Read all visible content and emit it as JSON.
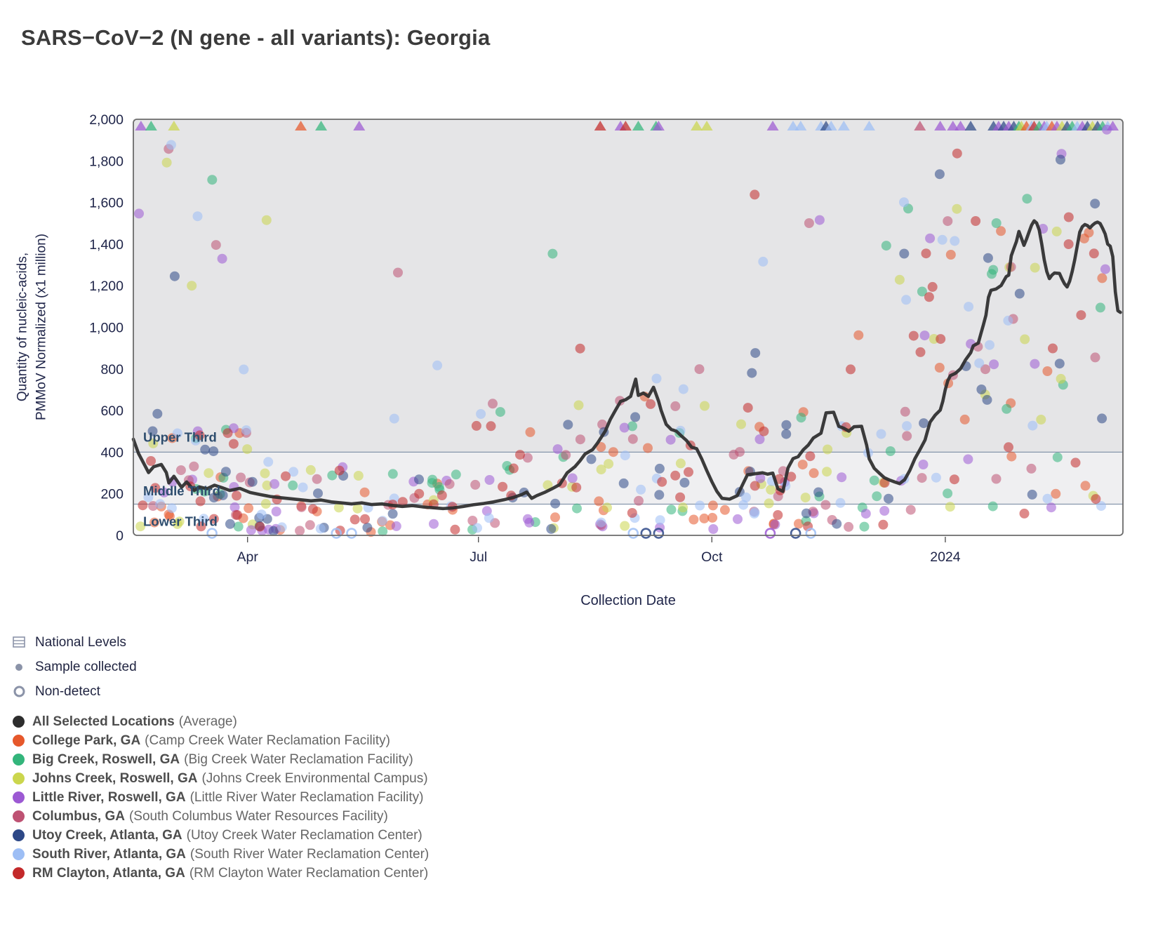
{
  "title": "SARS−CoV−2 (N gene - all variants): Georgia",
  "chart_data": {
    "type": "scatter",
    "title": "SARS−CoV−2 (N gene - all variants): Georgia",
    "xlabel": "Collection Date",
    "ylabel_line1": "Quantity of nucleic-acids,",
    "ylabel_line2": "PMMoV Normalized (x1 million)",
    "ylim": [
      0,
      2000
    ],
    "y_ticks": [
      0,
      200,
      400,
      600,
      800,
      1000,
      1200,
      1400,
      1600,
      1800,
      2000
    ],
    "x_domain_days": 390,
    "x_range_note": "approx Feb 2023 through Feb 2024",
    "x_ticks": [
      {
        "day": 45,
        "label": "Apr"
      },
      {
        "day": 136,
        "label": "Jul"
      },
      {
        "day": 228,
        "label": "Oct"
      },
      {
        "day": 320,
        "label": "2024"
      }
    ],
    "grid": "off",
    "legend_position": "bottom-left",
    "bands": [
      {
        "label": "Upper Third",
        "from": 400,
        "to": 2000,
        "color": "#e5e5e7",
        "label_value": 470
      },
      {
        "label": "Middle Third",
        "from": 150,
        "to": 400,
        "color": "#efeff1",
        "label_value": 212
      },
      {
        "label": "Lower Third",
        "from": 0,
        "to": 150,
        "color": "#ffffff",
        "label_value": 66
      }
    ],
    "band_line_color": "#8696ac",
    "band_label_color": "#2e4d6e",
    "locations": [
      {
        "id": "all-selected-locations",
        "label": "All Selected Locations",
        "facility": "(Average)",
        "color": "#2d2d2d",
        "density": 0
      },
      {
        "id": "college-park",
        "label": "College Park, GA",
        "facility": "(Camp Creek Water Reclamation Facility)",
        "color": "#e6582b",
        "density": 1.0
      },
      {
        "id": "big-creek",
        "label": "Big Creek, Roswell, GA",
        "facility": "(Big Creek Water Reclamation Facility)",
        "color": "#33b57b",
        "density": 0.9
      },
      {
        "id": "johns-creek",
        "label": "Johns Creek, Roswell, GA",
        "facility": "(Johns Creek Environmental Campus)",
        "color": "#cbd64d",
        "density": 0.9
      },
      {
        "id": "little-river",
        "label": "Little River, Roswell, GA",
        "facility": "(Little River Water Reclamation Facility)",
        "color": "#9c59d3",
        "density": 1.0
      },
      {
        "id": "columbus",
        "label": "Columbus, GA",
        "facility": "(South Columbus Water Resources Facility)",
        "color": "#be5273",
        "density": 1.0
      },
      {
        "id": "utoy-creek",
        "label": "Utoy Creek, Atlanta, GA",
        "facility": "(Utoy Creek Water Reclamation Center)",
        "color": "#2d4887",
        "density": 1.0
      },
      {
        "id": "south-river",
        "label": "South River, Atlanta, GA",
        "facility": "(South River Water Reclamation Center)",
        "color": "#9dbef5",
        "density": 1.1
      },
      {
        "id": "rm-clayton",
        "label": "RM Clayton, Atlanta, GA",
        "facility": "(RM Clayton Water Reclamation Center)",
        "color": "#c3292a",
        "density": 1.35
      }
    ],
    "average_line": {
      "name": "All Selected Locations (Average)",
      "color": "#2d2d2d",
      "points": [
        [
          0,
          462
        ],
        [
          2,
          395
        ],
        [
          4,
          348
        ],
        [
          6,
          302
        ],
        [
          8,
          330
        ],
        [
          11,
          341
        ],
        [
          13,
          302
        ],
        [
          14,
          252
        ],
        [
          16,
          284
        ],
        [
          19,
          231
        ],
        [
          21,
          257
        ],
        [
          24,
          216
        ],
        [
          26,
          233
        ],
        [
          29,
          224
        ],
        [
          32,
          241
        ],
        [
          35,
          229
        ],
        [
          38,
          216
        ],
        [
          42,
          226
        ],
        [
          46,
          206
        ],
        [
          50,
          196
        ],
        [
          54,
          187
        ],
        [
          58,
          181
        ],
        [
          62,
          176
        ],
        [
          66,
          171
        ],
        [
          70,
          166
        ],
        [
          74,
          170
        ],
        [
          78,
          161
        ],
        [
          82,
          156
        ],
        [
          86,
          151
        ],
        [
          90,
          156
        ],
        [
          94,
          148
        ],
        [
          98,
          151
        ],
        [
          102,
          144
        ],
        [
          106,
          139
        ],
        [
          110,
          143
        ],
        [
          114,
          137
        ],
        [
          118,
          133
        ],
        [
          122,
          129
        ],
        [
          126,
          132
        ],
        [
          130,
          139
        ],
        [
          134,
          147
        ],
        [
          138,
          153
        ],
        [
          142,
          161
        ],
        [
          146,
          171
        ],
        [
          150,
          183
        ],
        [
          153,
          196
        ],
        [
          155,
          208
        ],
        [
          157,
          178
        ],
        [
          159,
          191
        ],
        [
          162,
          206
        ],
        [
          165,
          224
        ],
        [
          168,
          244
        ],
        [
          171,
          301
        ],
        [
          174,
          330
        ],
        [
          176,
          358
        ],
        [
          178,
          391
        ],
        [
          181,
          412
        ],
        [
          183,
          445
        ],
        [
          186,
          502
        ],
        [
          188,
          558
        ],
        [
          190,
          601
        ],
        [
          192,
          644
        ],
        [
          194,
          652
        ],
        [
          196,
          668
        ],
        [
          198,
          751
        ],
        [
          199,
          673
        ],
        [
          201,
          684
        ],
        [
          203,
          668
        ],
        [
          205,
          712
        ],
        [
          207,
          645
        ],
        [
          208,
          601
        ],
        [
          210,
          534
        ],
        [
          212,
          509
        ],
        [
          214,
          501
        ],
        [
          216,
          478
        ],
        [
          218,
          456
        ],
        [
          220,
          424
        ],
        [
          222,
          417
        ],
        [
          224,
          368
        ],
        [
          226,
          311
        ],
        [
          228,
          258
        ],
        [
          230,
          211
        ],
        [
          232,
          178
        ],
        [
          235,
          174
        ],
        [
          238,
          191
        ],
        [
          240,
          241
        ],
        [
          242,
          291
        ],
        [
          245,
          296
        ],
        [
          248,
          301
        ],
        [
          250,
          294
        ],
        [
          252,
          299
        ],
        [
          254,
          224
        ],
        [
          256,
          211
        ],
        [
          258,
          324
        ],
        [
          260,
          369
        ],
        [
          262,
          378
        ],
        [
          264,
          411
        ],
        [
          266,
          434
        ],
        [
          268,
          468
        ],
        [
          271,
          491
        ],
        [
          273,
          589
        ],
        [
          276,
          592
        ],
        [
          278,
          524
        ],
        [
          280,
          515
        ],
        [
          282,
          501
        ],
        [
          284,
          522
        ],
        [
          287,
          524
        ],
        [
          289,
          434
        ],
        [
          290,
          368
        ],
        [
          292,
          322
        ],
        [
          294,
          299
        ],
        [
          296,
          277
        ],
        [
          298,
          266
        ],
        [
          300,
          257
        ],
        [
          302,
          249
        ],
        [
          304,
          268
        ],
        [
          306,
          312
        ],
        [
          308,
          368
        ],
        [
          310,
          412
        ],
        [
          312,
          458
        ],
        [
          313,
          502
        ],
        [
          314,
          544
        ],
        [
          316,
          578
        ],
        [
          318,
          602
        ],
        [
          319,
          644
        ],
        [
          320,
          701
        ],
        [
          321,
          744
        ],
        [
          322,
          768
        ],
        [
          324,
          779
        ],
        [
          326,
          801
        ],
        [
          328,
          844
        ],
        [
          330,
          878
        ],
        [
          331,
          911
        ],
        [
          333,
          924
        ],
        [
          334,
          968
        ],
        [
          335,
          1012
        ],
        [
          336,
          1058
        ],
        [
          337,
          1144
        ],
        [
          338,
          1178
        ],
        [
          340,
          1184
        ],
        [
          342,
          1201
        ],
        [
          344,
          1244
        ],
        [
          345,
          1251
        ],
        [
          346,
          1344
        ],
        [
          347,
          1378
        ],
        [
          348,
          1412
        ],
        [
          349,
          1461
        ],
        [
          350,
          1428
        ],
        [
          351,
          1394
        ],
        [
          352,
          1424
        ],
        [
          353,
          1458
        ],
        [
          354,
          1491
        ],
        [
          355,
          1512
        ],
        [
          356,
          1501
        ],
        [
          357,
          1468
        ],
        [
          358,
          1401
        ],
        [
          359,
          1324
        ],
        [
          360,
          1268
        ],
        [
          361,
          1234
        ],
        [
          362,
          1251
        ],
        [
          363,
          1261
        ],
        [
          365,
          1259
        ],
        [
          366,
          1232
        ],
        [
          367,
          1209
        ],
        [
          368,
          1194
        ],
        [
          369,
          1222
        ],
        [
          370,
          1268
        ],
        [
          371,
          1324
        ],
        [
          372,
          1391
        ],
        [
          373,
          1458
        ],
        [
          374,
          1484
        ],
        [
          375,
          1494
        ],
        [
          376,
          1489
        ],
        [
          377,
          1478
        ],
        [
          378,
          1491
        ],
        [
          379,
          1501
        ],
        [
          380,
          1506
        ],
        [
          381,
          1499
        ],
        [
          382,
          1476
        ],
        [
          383,
          1449
        ],
        [
          384,
          1400
        ],
        [
          385,
          1390
        ],
        [
          386,
          1340
        ],
        [
          387,
          1170
        ],
        [
          388,
          1080
        ],
        [
          389,
          1072
        ]
      ]
    },
    "scatter_style": {
      "radius": 7,
      "opacity": 0.55
    },
    "scatter_seed": 20,
    "scatter_windows": [
      {
        "d0": 2,
        "d1": 45,
        "n": 9,
        "vmin": 40,
        "vmax": 520,
        "pow": 1.35,
        "hiFrac": 0.16,
        "hiMax": 1950
      },
      {
        "d0": 45,
        "d1": 135,
        "n": 11,
        "vmin": 15,
        "vmax": 330,
        "pow": 1.4,
        "hiFrac": 0.07,
        "hiMax": 1750
      },
      {
        "d0": 135,
        "d1": 230,
        "n": 12,
        "vmin": 30,
        "vmax": 640,
        "pow": 1.35,
        "hiFrac": 0.1,
        "hiMax": 1920
      },
      {
        "d0": 230,
        "d1": 302,
        "n": 10,
        "vmin": 40,
        "vmax": 600,
        "pow": 1.3,
        "hiFrac": 0.11,
        "hiMax": 1780
      },
      {
        "d0": 302,
        "d1": 385,
        "n": 13,
        "vmin": 90,
        "vmax": 1420,
        "pow": 1.05,
        "hiFrac": 0.2,
        "hiMax": 1980
      }
    ],
    "clipped_points": [
      {
        "day": 3,
        "location": "little-river"
      },
      {
        "day": 7,
        "location": "big-creek"
      },
      {
        "day": 16,
        "location": "johns-creek"
      },
      {
        "day": 66,
        "location": "college-park"
      },
      {
        "day": 74,
        "location": "big-creek"
      },
      {
        "day": 89,
        "location": "little-river"
      },
      {
        "day": 184,
        "location": "rm-clayton"
      },
      {
        "day": 192,
        "location": "little-river"
      },
      {
        "day": 194,
        "location": "rm-clayton"
      },
      {
        "day": 199,
        "location": "big-creek"
      },
      {
        "day": 206,
        "location": "big-creek"
      },
      {
        "day": 207,
        "location": "little-river"
      },
      {
        "day": 222,
        "location": "johns-creek"
      },
      {
        "day": 226,
        "location": "johns-creek"
      },
      {
        "day": 252,
        "location": "little-river"
      },
      {
        "day": 260,
        "location": "south-river"
      },
      {
        "day": 263,
        "location": "south-river"
      },
      {
        "day": 271,
        "location": "south-river"
      },
      {
        "day": 273,
        "location": "utoy-creek"
      },
      {
        "day": 275,
        "location": "south-river"
      },
      {
        "day": 280,
        "location": "south-river"
      },
      {
        "day": 290,
        "location": "south-river"
      },
      {
        "day": 310,
        "location": "columbus"
      },
      {
        "day": 318,
        "location": "little-river"
      },
      {
        "day": 323,
        "location": "little-river"
      },
      {
        "day": 326,
        "location": "little-river"
      },
      {
        "day": 330,
        "location": "utoy-creek"
      },
      {
        "day": 339,
        "location": "utoy-creek"
      },
      {
        "day": 341,
        "location": "little-river"
      },
      {
        "day": 343,
        "location": "utoy-creek"
      },
      {
        "day": 345,
        "location": "little-river"
      },
      {
        "day": 347,
        "location": "utoy-creek"
      },
      {
        "day": 349,
        "location": "big-creek"
      },
      {
        "day": 350,
        "location": "johns-creek"
      },
      {
        "day": 352,
        "location": "college-park"
      },
      {
        "day": 354,
        "location": "south-river"
      },
      {
        "day": 355,
        "location": "rm-clayton"
      },
      {
        "day": 357,
        "location": "big-creek"
      },
      {
        "day": 359,
        "location": "little-river"
      },
      {
        "day": 360,
        "location": "south-river"
      },
      {
        "day": 362,
        "location": "college-park"
      },
      {
        "day": 364,
        "location": "little-river"
      },
      {
        "day": 366,
        "location": "johns-creek"
      },
      {
        "day": 368,
        "location": "utoy-creek"
      },
      {
        "day": 370,
        "location": "big-creek"
      },
      {
        "day": 372,
        "location": "south-river"
      },
      {
        "day": 374,
        "location": "little-river"
      },
      {
        "day": 376,
        "location": "utoy-creek"
      },
      {
        "day": 378,
        "location": "johns-creek"
      },
      {
        "day": 380,
        "location": "utoy-creek"
      },
      {
        "day": 382,
        "location": "big-creek"
      },
      {
        "day": 384,
        "location": "south-river"
      },
      {
        "day": 386,
        "location": "little-river"
      }
    ],
    "non_detects": [
      {
        "day": 31,
        "location": "south-river"
      },
      {
        "day": 80,
        "location": "south-river"
      },
      {
        "day": 86,
        "location": "south-river"
      },
      {
        "day": 197,
        "location": "south-river"
      },
      {
        "day": 202,
        "location": "utoy-creek"
      },
      {
        "day": 207,
        "location": "utoy-creek"
      },
      {
        "day": 251,
        "location": "little-river"
      },
      {
        "day": 261,
        "location": "utoy-creek"
      },
      {
        "day": 267,
        "location": "south-river"
      }
    ]
  },
  "legend": {
    "markers": [
      {
        "id": "national-levels",
        "label": "National Levels"
      },
      {
        "id": "sample-collected",
        "label": "Sample collected"
      },
      {
        "id": "non-detect",
        "label": "Non-detect"
      }
    ],
    "marker_icon_color": "#8b93a8"
  },
  "axis_text_color": "#20264a",
  "plot_border_color": "#6b6b6b"
}
